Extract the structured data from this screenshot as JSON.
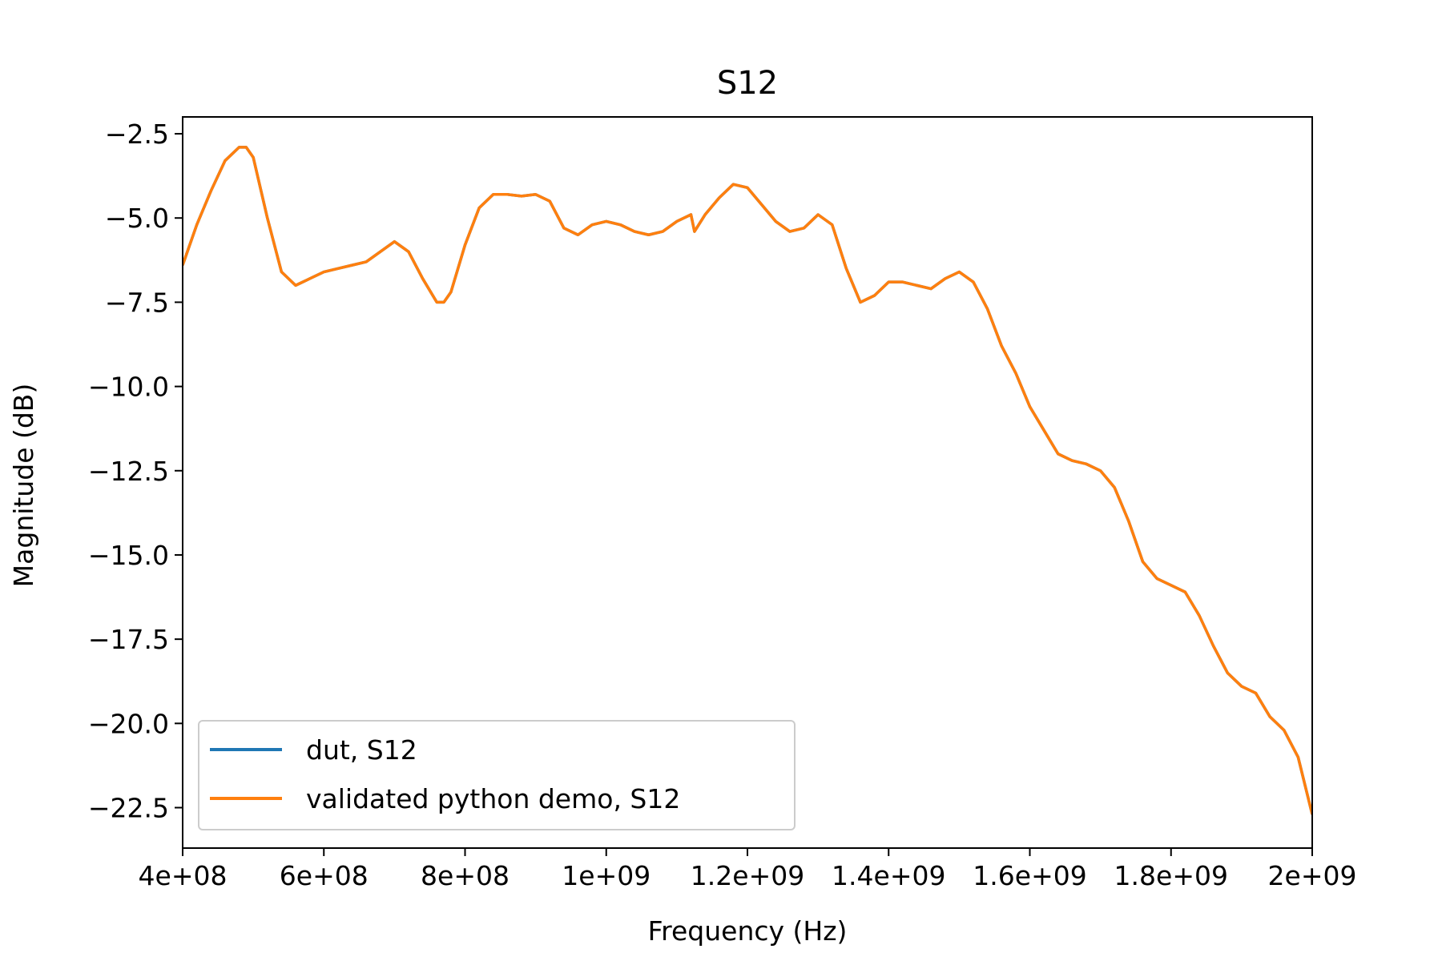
{
  "chart_data": {
    "type": "line",
    "title": "S12",
    "xlabel": "Frequency (Hz)",
    "ylabel": "Magnitude (dB)",
    "xlim": [
      400000000,
      2000000000
    ],
    "ylim": [
      -23.7,
      -2.0
    ],
    "x_ticks": [
      400000000,
      600000000,
      800000000,
      1000000000,
      1200000000,
      1400000000,
      1600000000,
      1800000000,
      2000000000
    ],
    "x_tick_labels": [
      "4e+08",
      "6e+08",
      "8e+08",
      "1e+09",
      "1.2e+09",
      "1.4e+09",
      "1.6e+09",
      "1.8e+09",
      "2e+09"
    ],
    "y_ticks": [
      -2.5,
      -5.0,
      -7.5,
      -10.0,
      -12.5,
      -15.0,
      -17.5,
      -20.0,
      -22.5
    ],
    "y_tick_labels": [
      "−2.5",
      "−5.0",
      "−7.5",
      "−10.0",
      "−12.5",
      "−15.0",
      "−17.5",
      "−20.0",
      "−22.5"
    ],
    "grid": false,
    "legend_position": "lower-left",
    "series": [
      {
        "name": "dut, S12",
        "color": "#1f77b4",
        "x": [
          400000000,
          420000000,
          440000000,
          460000000,
          480000000,
          490000000,
          500000000,
          520000000,
          540000000,
          560000000,
          580000000,
          600000000,
          620000000,
          640000000,
          660000000,
          680000000,
          700000000,
          720000000,
          740000000,
          760000000,
          770000000,
          780000000,
          800000000,
          820000000,
          840000000,
          860000000,
          880000000,
          900000000,
          920000000,
          940000000,
          960000000,
          980000000,
          1000000000,
          1020000000,
          1040000000,
          1060000000,
          1080000000,
          1100000000,
          1110000000,
          1120000000,
          1125000000,
          1140000000,
          1160000000,
          1180000000,
          1200000000,
          1220000000,
          1240000000,
          1260000000,
          1280000000,
          1300000000,
          1320000000,
          1340000000,
          1360000000,
          1380000000,
          1400000000,
          1420000000,
          1440000000,
          1460000000,
          1480000000,
          1500000000,
          1520000000,
          1540000000,
          1560000000,
          1580000000,
          1600000000,
          1620000000,
          1640000000,
          1660000000,
          1680000000,
          1700000000,
          1720000000,
          1740000000,
          1760000000,
          1780000000,
          1800000000,
          1820000000,
          1840000000,
          1860000000,
          1880000000,
          1900000000,
          1920000000,
          1940000000,
          1960000000,
          1980000000,
          2000000000
        ],
        "y": [
          -6.4,
          -5.2,
          -4.2,
          -3.3,
          -2.9,
          -2.9,
          -3.2,
          -5.0,
          -6.6,
          -7.0,
          -6.8,
          -6.6,
          -6.5,
          -6.4,
          -6.3,
          -6.0,
          -5.7,
          -6.0,
          -6.8,
          -7.5,
          -7.5,
          -7.2,
          -5.8,
          -4.7,
          -4.3,
          -4.3,
          -4.35,
          -4.3,
          -4.5,
          -5.3,
          -5.5,
          -5.2,
          -5.1,
          -5.2,
          -5.4,
          -5.5,
          -5.4,
          -5.1,
          -5.0,
          -4.9,
          -5.4,
          -4.9,
          -4.4,
          -4.0,
          -4.1,
          -4.6,
          -5.1,
          -5.4,
          -5.3,
          -4.9,
          -5.2,
          -6.5,
          -7.5,
          -7.3,
          -6.9,
          -6.9,
          -7.0,
          -7.1,
          -6.8,
          -6.6,
          -6.9,
          -7.7,
          -8.8,
          -9.6,
          -10.6,
          -11.3,
          -12.0,
          -12.2,
          -12.3,
          -12.5,
          -13.0,
          -14.0,
          -15.2,
          -15.7,
          -15.9,
          -16.1,
          -16.8,
          -17.7,
          -18.5,
          -18.9,
          -19.1,
          -19.8,
          -20.2,
          -21.0,
          -22.7
        ]
      },
      {
        "name": "validated python demo, S12",
        "color": "#ff7f0e",
        "x": [
          400000000,
          420000000,
          440000000,
          460000000,
          480000000,
          490000000,
          500000000,
          520000000,
          540000000,
          560000000,
          580000000,
          600000000,
          620000000,
          640000000,
          660000000,
          680000000,
          700000000,
          720000000,
          740000000,
          760000000,
          770000000,
          780000000,
          800000000,
          820000000,
          840000000,
          860000000,
          880000000,
          900000000,
          920000000,
          940000000,
          960000000,
          980000000,
          1000000000,
          1020000000,
          1040000000,
          1060000000,
          1080000000,
          1100000000,
          1110000000,
          1120000000,
          1125000000,
          1140000000,
          1160000000,
          1180000000,
          1200000000,
          1220000000,
          1240000000,
          1260000000,
          1280000000,
          1300000000,
          1320000000,
          1340000000,
          1360000000,
          1380000000,
          1400000000,
          1420000000,
          1440000000,
          1460000000,
          1480000000,
          1500000000,
          1520000000,
          1540000000,
          1560000000,
          1580000000,
          1600000000,
          1620000000,
          1640000000,
          1660000000,
          1680000000,
          1700000000,
          1720000000,
          1740000000,
          1760000000,
          1780000000,
          1800000000,
          1820000000,
          1840000000,
          1860000000,
          1880000000,
          1900000000,
          1920000000,
          1940000000,
          1960000000,
          1980000000,
          2000000000
        ],
        "y": [
          -6.4,
          -5.2,
          -4.2,
          -3.3,
          -2.9,
          -2.9,
          -3.2,
          -5.0,
          -6.6,
          -7.0,
          -6.8,
          -6.6,
          -6.5,
          -6.4,
          -6.3,
          -6.0,
          -5.7,
          -6.0,
          -6.8,
          -7.5,
          -7.5,
          -7.2,
          -5.8,
          -4.7,
          -4.3,
          -4.3,
          -4.35,
          -4.3,
          -4.5,
          -5.3,
          -5.5,
          -5.2,
          -5.1,
          -5.2,
          -5.4,
          -5.5,
          -5.4,
          -5.1,
          -5.0,
          -4.9,
          -5.4,
          -4.9,
          -4.4,
          -4.0,
          -4.1,
          -4.6,
          -5.1,
          -5.4,
          -5.3,
          -4.9,
          -5.2,
          -6.5,
          -7.5,
          -7.3,
          -6.9,
          -6.9,
          -7.0,
          -7.1,
          -6.8,
          -6.6,
          -6.9,
          -7.7,
          -8.8,
          -9.6,
          -10.6,
          -11.3,
          -12.0,
          -12.2,
          -12.3,
          -12.5,
          -13.0,
          -14.0,
          -15.2,
          -15.7,
          -15.9,
          -16.1,
          -16.8,
          -17.7,
          -18.5,
          -18.9,
          -19.1,
          -19.8,
          -20.2,
          -21.0,
          -22.7
        ]
      }
    ]
  }
}
